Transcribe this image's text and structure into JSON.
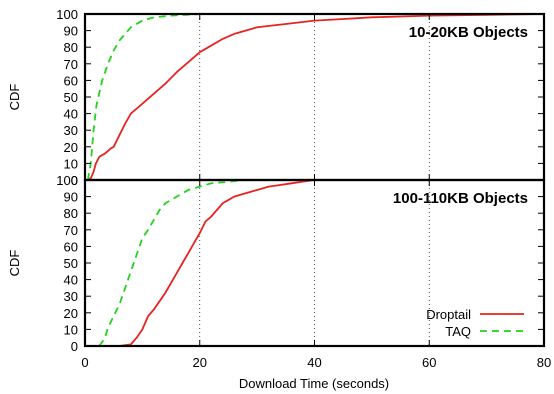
{
  "chart_data": [
    {
      "type": "line",
      "panel": "top",
      "annotation": "10-20KB Objects",
      "ylabel": "CDF",
      "xlabel": "",
      "xlim": [
        0,
        80
      ],
      "ylim": [
        0,
        100
      ],
      "y_ticks": [
        "0",
        "10",
        "20",
        "30",
        "40",
        "50",
        "60",
        "70",
        "80",
        "90",
        "100"
      ],
      "x_ticks": [],
      "grid": "vertical dotted at x=20, 40, 60",
      "series": [
        {
          "name": "Droptail",
          "color": "#e8231f",
          "dash": "solid",
          "points": [
            [
              0.5,
              0
            ],
            [
              1,
              1
            ],
            [
              1.5,
              5
            ],
            [
              1.9,
              10
            ],
            [
              2.5,
              14
            ],
            [
              3.5,
              16
            ],
            [
              4.5,
              19
            ],
            [
              5,
              20
            ],
            [
              6,
              27
            ],
            [
              7,
              34
            ],
            [
              8,
              40
            ],
            [
              9,
              43
            ],
            [
              10,
              46
            ],
            [
              12,
              52
            ],
            [
              14,
              58
            ],
            [
              16,
              65
            ],
            [
              18,
              71
            ],
            [
              20,
              77
            ],
            [
              22,
              81
            ],
            [
              24,
              85
            ],
            [
              26,
              88
            ],
            [
              28,
              90
            ],
            [
              30,
              92
            ],
            [
              35,
              94
            ],
            [
              40,
              96
            ],
            [
              45,
              97
            ],
            [
              50,
              98
            ],
            [
              55,
              98.5
            ],
            [
              60,
              99
            ],
            [
              70,
              99.5
            ],
            [
              80,
              100
            ]
          ]
        },
        {
          "name": "TAQ",
          "color": "#22d31c",
          "dash": "dashed",
          "points": [
            [
              0.5,
              0
            ],
            [
              1,
              10
            ],
            [
              1.5,
              30
            ],
            [
              2,
              45
            ],
            [
              3,
              60
            ],
            [
              4,
              70
            ],
            [
              5,
              78
            ],
            [
              6,
              84
            ],
            [
              7,
              88
            ],
            [
              8,
              92
            ],
            [
              10,
              96
            ],
            [
              12,
              98
            ],
            [
              15,
              99
            ],
            [
              20,
              100
            ],
            [
              80,
              100
            ]
          ]
        }
      ]
    },
    {
      "type": "line",
      "panel": "bottom",
      "annotation": "100-110KB Objects",
      "ylabel": "CDF",
      "xlabel": "Download Time (seconds)",
      "xlim": [
        0,
        80
      ],
      "ylim": [
        0,
        100
      ],
      "y_ticks": [
        "0",
        "10",
        "20",
        "30",
        "40",
        "50",
        "60",
        "70",
        "80",
        "90",
        "100"
      ],
      "x_ticks": [
        "0",
        "20",
        "40",
        "60",
        "80"
      ],
      "grid": "vertical dotted at x=20, 40, 60",
      "legend_position": "bottom-right",
      "series": [
        {
          "name": "Droptail",
          "color": "#e8231f",
          "dash": "solid",
          "points": [
            [
              6,
              0
            ],
            [
              8,
              1
            ],
            [
              9,
              5
            ],
            [
              10,
              10
            ],
            [
              11,
              18
            ],
            [
              12,
              22
            ],
            [
              13,
              27
            ],
            [
              14,
              32
            ],
            [
              15,
              38
            ],
            [
              16,
              44
            ],
            [
              17,
              50
            ],
            [
              18,
              56
            ],
            [
              19,
              62
            ],
            [
              20,
              68
            ],
            [
              21,
              75
            ],
            [
              22,
              78
            ],
            [
              23,
              82
            ],
            [
              24,
              86
            ],
            [
              25,
              88
            ],
            [
              26,
              90
            ],
            [
              28,
              92
            ],
            [
              30,
              94
            ],
            [
              32,
              96
            ],
            [
              34,
              97
            ],
            [
              36,
              98
            ],
            [
              38,
              99
            ],
            [
              40,
              100
            ],
            [
              80,
              100
            ]
          ]
        },
        {
          "name": "TAQ",
          "color": "#22d31c",
          "dash": "dashed",
          "points": [
            [
              2.5,
              0
            ],
            [
              3.5,
              5
            ],
            [
              4,
              11
            ],
            [
              5,
              18
            ],
            [
              6,
              25
            ],
            [
              7,
              35
            ],
            [
              8,
              45
            ],
            [
              9,
              55
            ],
            [
              10,
              65
            ],
            [
              11,
              70
            ],
            [
              12,
              76
            ],
            [
              13,
              82
            ],
            [
              14,
              86
            ],
            [
              15,
              88
            ],
            [
              16,
              90
            ],
            [
              17,
              92
            ],
            [
              18,
              94
            ],
            [
              20,
              96
            ],
            [
              22,
              98
            ],
            [
              25,
              99
            ],
            [
              28,
              100
            ],
            [
              80,
              100
            ]
          ]
        }
      ]
    }
  ]
}
